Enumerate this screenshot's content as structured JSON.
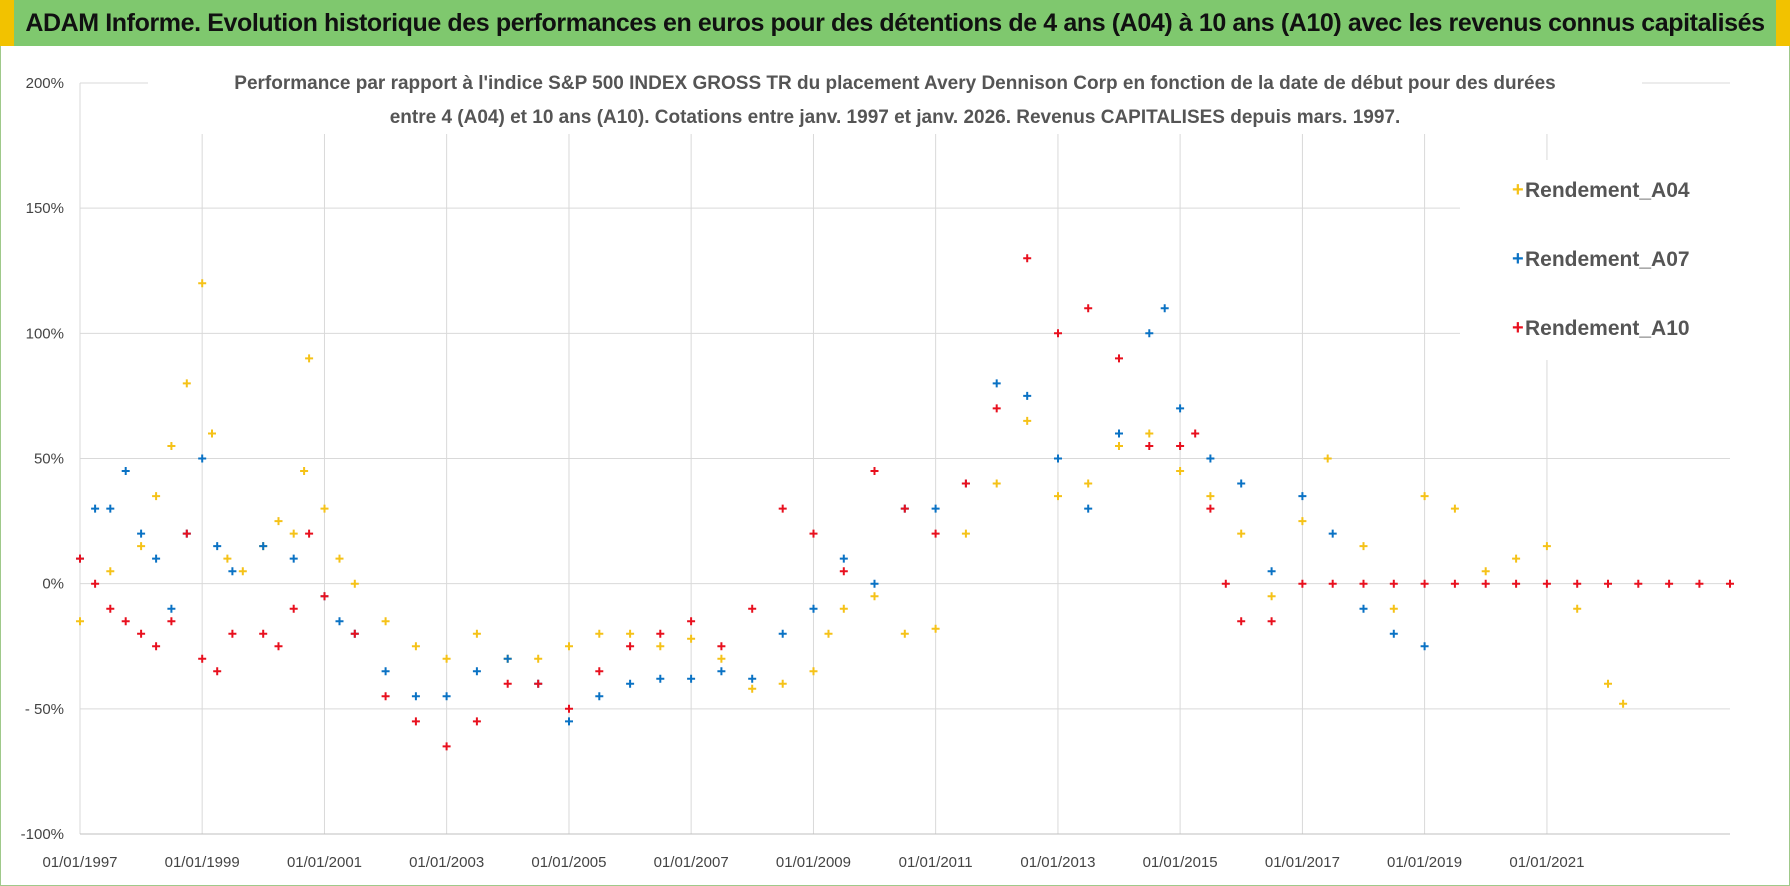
{
  "header": {
    "title": "ADAM Informe. Evolution historique des performances en euros pour des détentions de 4 ans (A04) à 10 ans (A10) avec les revenus connus capitalisés"
  },
  "colors": {
    "banner": "#7fc86e",
    "A04": "#f5c218",
    "A07": "#0a72c4",
    "A10": "#e8101e",
    "grid": "#d9d9d9"
  },
  "chart_data": {
    "type": "scatter",
    "title_line1": "Performance par rapport à l'indice S&P 500 INDEX GROSS TR  du placement Avery Dennison Corp en fonction de la date de début pour des durées",
    "title_line2": "entre 4 (A04) et 10 ans (A10). Cotations entre janv. 1997 et janv. 2026. Revenus CAPITALISES depuis mars. 1997.",
    "xlabel": "",
    "ylabel": "",
    "xlim": [
      "1997-01-01",
      "2023-12-31"
    ],
    "ylim": [
      -100,
      200
    ],
    "grid": true,
    "legend_position": "top-right",
    "x_ticks": [
      "01/01/1997",
      "01/01/1999",
      "01/01/2001",
      "01/01/2003",
      "01/01/2005",
      "01/01/2007",
      "01/01/2009",
      "01/01/2011",
      "01/01/2013",
      "01/01/2015",
      "01/01/2017",
      "01/01/2019",
      "01/01/2021"
    ],
    "y_ticks": [
      "200%",
      "150%",
      "100%",
      "50%",
      "0%",
      "- 50%",
      "-100%"
    ],
    "series": [
      {
        "name": "Rendement_A04",
        "color": "#f5c218",
        "x": [
          "1997-01-01",
          "1997-07-01",
          "1998-01-01",
          "1998-04-01",
          "1998-07-01",
          "1998-10-01",
          "1999-01-01",
          "1999-03-01",
          "1999-06-01",
          "1999-09-01",
          "2000-01-01",
          "2000-04-01",
          "2000-07-01",
          "2000-09-01",
          "2000-10-01",
          "2001-01-01",
          "2001-04-01",
          "2001-07-01",
          "2002-01-01",
          "2002-07-01",
          "2003-01-01",
          "2003-07-01",
          "2004-01-01",
          "2004-07-01",
          "2005-01-01",
          "2005-07-01",
          "2006-01-01",
          "2006-07-01",
          "2007-01-01",
          "2007-07-01",
          "2008-01-01",
          "2008-07-01",
          "2009-01-01",
          "2009-04-01",
          "2009-07-01",
          "2010-01-01",
          "2010-07-01",
          "2011-01-01",
          "2011-07-01",
          "2012-01-01",
          "2012-07-01",
          "2013-01-01",
          "2013-07-01",
          "2014-01-01",
          "2014-07-01",
          "2015-01-01",
          "2015-07-01",
          "2016-01-01",
          "2016-07-01",
          "2017-01-01",
          "2017-06-01",
          "2018-01-01",
          "2018-07-01",
          "2019-01-01",
          "2019-07-01",
          "2020-01-01",
          "2020-07-01",
          "2021-01-01",
          "2021-07-01",
          "2022-01-01",
          "2022-04-01"
        ],
        "y": [
          -15,
          5,
          15,
          35,
          55,
          80,
          120,
          60,
          10,
          5,
          15,
          25,
          20,
          45,
          90,
          30,
          10,
          0,
          -15,
          -25,
          -30,
          -20,
          -30,
          -30,
          -25,
          -20,
          -20,
          -25,
          -22,
          -30,
          -42,
          -40,
          -35,
          -20,
          -10,
          -5,
          -20,
          -18,
          20,
          40,
          65,
          35,
          40,
          55,
          60,
          45,
          35,
          20,
          -5,
          25,
          50,
          15,
          -10,
          35,
          30,
          5,
          10,
          15,
          -10,
          -40,
          -48
        ]
      },
      {
        "name": "Rendement_A07",
        "color": "#0a72c4",
        "x": [
          "1997-01-01",
          "1997-04-01",
          "1997-07-01",
          "1997-10-01",
          "1998-01-01",
          "1998-04-01",
          "1998-07-01",
          "1998-10-01",
          "1999-01-01",
          "1999-04-01",
          "1999-07-01",
          "2000-01-01",
          "2000-07-01",
          "2001-01-01",
          "2001-04-01",
          "2001-07-01",
          "2002-01-01",
          "2002-07-01",
          "2003-01-01",
          "2003-07-01",
          "2004-01-01",
          "2004-07-01",
          "2005-01-01",
          "2005-07-01",
          "2006-01-01",
          "2006-07-01",
          "2007-01-01",
          "2007-07-01",
          "2008-01-01",
          "2008-07-01",
          "2009-01-01",
          "2009-07-01",
          "2010-01-01",
          "2010-07-01",
          "2011-01-01",
          "2011-07-01",
          "2012-01-01",
          "2012-07-01",
          "2013-01-01",
          "2013-07-01",
          "2014-01-01",
          "2014-07-01",
          "2014-10-01",
          "2015-01-01",
          "2015-07-01",
          "2016-01-01",
          "2016-07-01",
          "2017-01-01",
          "2017-07-01",
          "2018-01-01",
          "2018-07-01",
          "2019-01-01"
        ],
        "y": [
          10,
          30,
          30,
          45,
          20,
          10,
          -10,
          20,
          50,
          15,
          5,
          15,
          10,
          -5,
          -15,
          -20,
          -35,
          -45,
          -45,
          -35,
          -30,
          -40,
          -55,
          -45,
          -40,
          -38,
          -38,
          -35,
          -38,
          -20,
          -10,
          10,
          0,
          30,
          30,
          40,
          80,
          75,
          50,
          30,
          60,
          100,
          110,
          70,
          50,
          40,
          5,
          35,
          20,
          -10,
          -20,
          -25
        ]
      },
      {
        "name": "Rendement_A10",
        "color": "#e8101e",
        "x": [
          "1997-01-01",
          "1997-04-01",
          "1997-07-01",
          "1997-10-01",
          "1998-01-01",
          "1998-04-01",
          "1998-07-01",
          "1998-10-01",
          "1999-01-01",
          "1999-04-01",
          "1999-07-01",
          "2000-01-01",
          "2000-04-01",
          "2000-07-01",
          "2000-10-01",
          "2001-01-01",
          "2001-07-01",
          "2002-01-01",
          "2002-07-01",
          "2003-01-01",
          "2003-07-01",
          "2004-01-01",
          "2004-07-01",
          "2005-01-01",
          "2005-07-01",
          "2006-01-01",
          "2006-07-01",
          "2007-01-01",
          "2007-07-01",
          "2008-01-01",
          "2008-07-01",
          "2009-01-01",
          "2009-07-01",
          "2010-01-01",
          "2010-07-01",
          "2011-01-01",
          "2011-07-01",
          "2012-01-01",
          "2012-07-01",
          "2013-01-01",
          "2013-07-01",
          "2014-01-01",
          "2014-07-01",
          "2015-01-01",
          "2015-04-01",
          "2015-07-01",
          "2015-10-01",
          "2016-01-01",
          "2016-07-01",
          "2017-01-01",
          "2017-07-01",
          "2018-01-01",
          "2018-07-01",
          "2019-01-01",
          "2019-07-01",
          "2020-01-01",
          "2020-07-01",
          "2021-01-01",
          "2021-07-01",
          "2022-01-01",
          "2022-07-01",
          "2023-01-01",
          "2023-07-01",
          "2023-12-31"
        ],
        "y": [
          10,
          0,
          -10,
          -15,
          -20,
          -25,
          -15,
          20,
          -30,
          -35,
          -20,
          -20,
          -25,
          -10,
          20,
          -5,
          -20,
          -45,
          -55,
          -65,
          -55,
          -40,
          -40,
          -50,
          -35,
          -25,
          -20,
          -15,
          -25,
          -10,
          30,
          20,
          5,
          45,
          30,
          20,
          40,
          70,
          130,
          100,
          110,
          90,
          55,
          55,
          60,
          30,
          0,
          -15,
          -15,
          0,
          0,
          0,
          0,
          0,
          0,
          0,
          0,
          0,
          0,
          0,
          0,
          0,
          0,
          0
        ]
      }
    ]
  }
}
